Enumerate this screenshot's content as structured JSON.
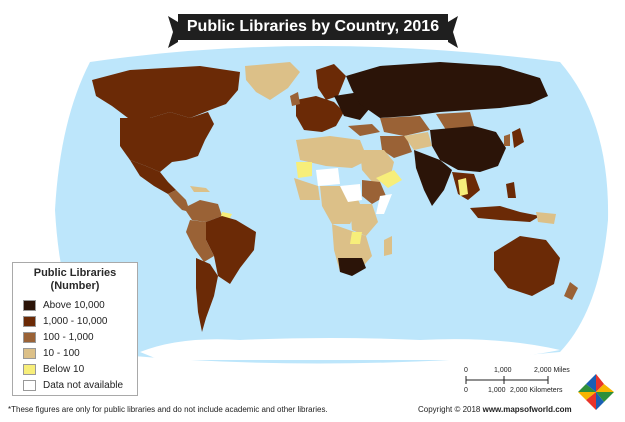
{
  "title": "Public Libraries by Country, 2016",
  "legend": {
    "title_line1": "Public Libraries",
    "title_line2": "(Number)",
    "items": [
      {
        "label": "Above 10,000",
        "color": "#2b1408"
      },
      {
        "label": "1,000 - 10,000",
        "color": "#6b2a06"
      },
      {
        "label": "100 - 1,000",
        "color": "#9a6236"
      },
      {
        "label": "10 - 100",
        "color": "#dcc088"
      },
      {
        "label": "Below 10",
        "color": "#f7ee7a"
      },
      {
        "label": "Data not available",
        "color": "#ffffff"
      }
    ]
  },
  "scale": {
    "miles_labels": [
      "0",
      "1,000",
      "2,000 Miles"
    ],
    "km_labels": [
      "0",
      "1,000",
      "2,000 Kilometers"
    ]
  },
  "footnote": "*These figures are only for public libraries and do not include academic and other libraries.",
  "copyright_prefix": "Copyright © 2018",
  "copyright_site": "www.mapsofworld.com",
  "colors": {
    "ocean": "#bde6fb",
    "banner": "#1f1f1f"
  }
}
